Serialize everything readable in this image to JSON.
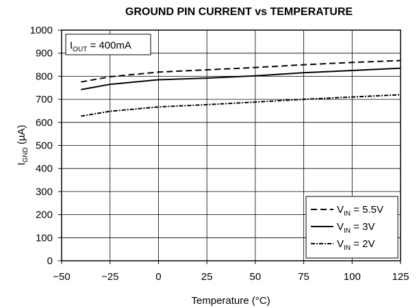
{
  "chart_data": {
    "type": "line",
    "title": "GROUND PIN CURRENT vs TEMPERATURE",
    "xlabel": "Temperature (°C)",
    "ylabel": {
      "main": "I",
      "sub": "GND",
      "unit": " (µA)"
    },
    "annotation": {
      "main": "I",
      "sub": "OUT",
      "rest": " = 400mA"
    },
    "xlim": [
      -50,
      125
    ],
    "ylim": [
      0,
      1000
    ],
    "x_ticks": [
      -50,
      -25,
      0,
      25,
      50,
      75,
      100,
      125
    ],
    "x_tick_labels": [
      "−50",
      "−25",
      "0",
      "25",
      "50",
      "75",
      "100",
      "125"
    ],
    "y_ticks": [
      0,
      100,
      200,
      300,
      400,
      500,
      600,
      700,
      800,
      900,
      1000
    ],
    "y_tick_labels": [
      "0",
      "100",
      "200",
      "300",
      "400",
      "500",
      "600",
      "700",
      "800",
      "900",
      "1000"
    ],
    "grid": true,
    "legend_position": "bottom-right",
    "series": [
      {
        "name": {
          "main": "V",
          "sub": "IN",
          "rest": " = 5.5V"
        },
        "style": "dashed",
        "color": "#000000",
        "x": [
          -40,
          -25,
          0,
          25,
          50,
          75,
          100,
          125
        ],
        "y": [
          775,
          798,
          818,
          828,
          838,
          850,
          860,
          868
        ]
      },
      {
        "name": {
          "main": "V",
          "sub": "IN",
          "rest": " = 3V"
        },
        "style": "solid",
        "color": "#000000",
        "x": [
          -40,
          -25,
          0,
          25,
          50,
          75,
          100,
          125
        ],
        "y": [
          742,
          765,
          785,
          792,
          802,
          815,
          825,
          835
        ]
      },
      {
        "name": {
          "main": "V",
          "sub": "IN",
          "rest": " = 2V"
        },
        "style": "dash-dot",
        "color": "#000000",
        "x": [
          -40,
          -25,
          0,
          25,
          50,
          75,
          100,
          125
        ],
        "y": [
          627,
          648,
          667,
          677,
          688,
          700,
          710,
          720
        ]
      }
    ]
  }
}
